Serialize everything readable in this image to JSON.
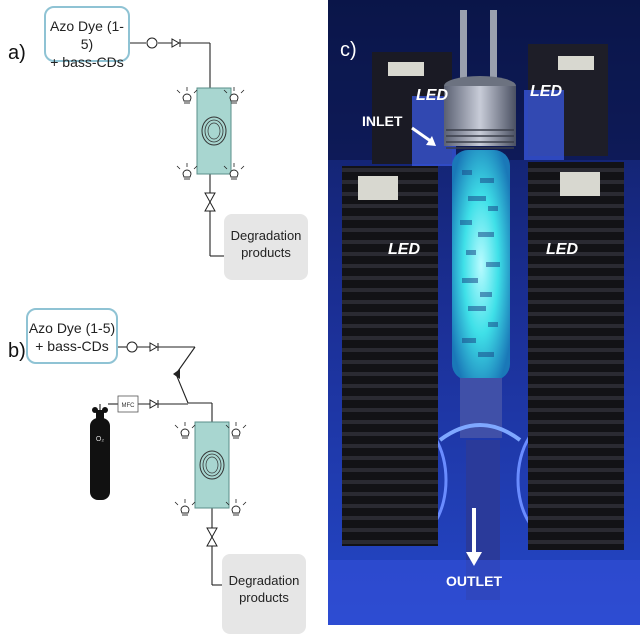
{
  "panels": {
    "a": {
      "label": "a)",
      "feed_line1": "Azo Dye (1-5)",
      "feed_line2": "+ bass-CDs",
      "product_line1": "Degradation",
      "product_line2": "products"
    },
    "b": {
      "label": "b)",
      "feed_line1": "Azo Dye (1-5)",
      "feed_line2": "+ bass-CDs",
      "mfc_label": "MFC",
      "gas_label": "O₂",
      "product_line1": "Degradation",
      "product_line2": "products"
    },
    "c": {
      "label": "c)",
      "led_labels": [
        "LED",
        "LED",
        "LED",
        "LED"
      ],
      "inlet_label": "INLET",
      "outlet_label": "OUTLET"
    }
  },
  "colors": {
    "feed_border": "#8fc3d4",
    "reactor_fill": "#a8d6d0",
    "product_fill": "#e6e6e6",
    "photo_background": "#1a2a78",
    "glow": "#3fe0e8",
    "led_text": "#ffffff"
  }
}
